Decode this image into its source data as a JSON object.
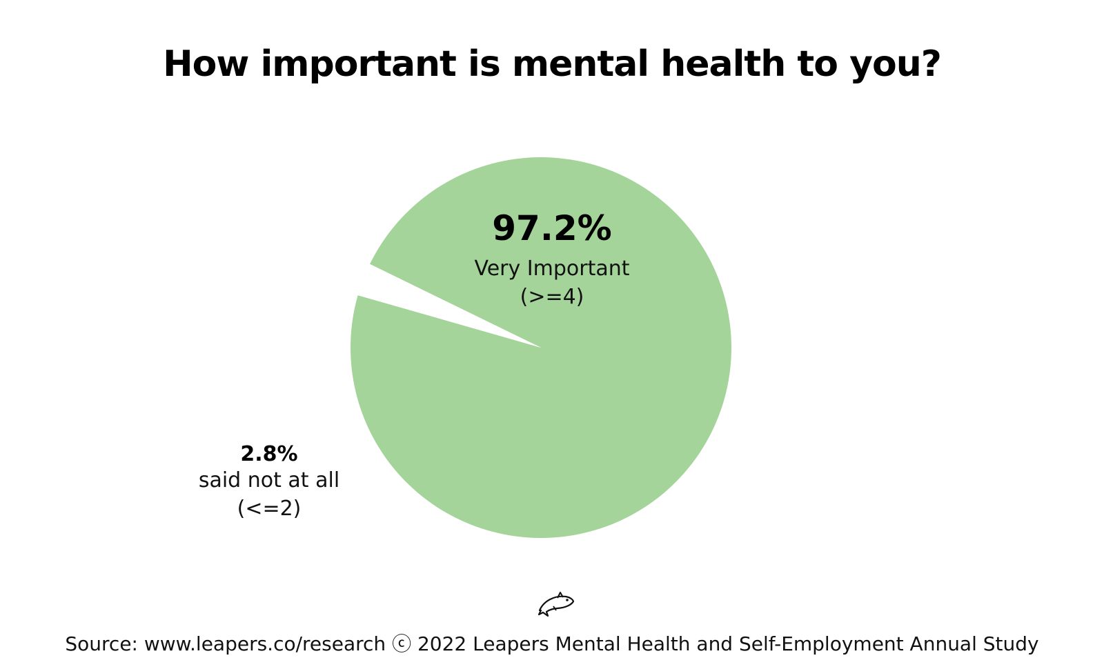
{
  "chart_data": {
    "type": "pie",
    "title": "How important is mental health to you?",
    "slices": [
      {
        "value": 97.2,
        "value_label": "97.2%",
        "label": "Very Important",
        "sublabel": "(>=4)",
        "color": "#a4d49a"
      },
      {
        "value": 2.8,
        "value_label": "2.8%",
        "label": "said not at all",
        "sublabel": "(<=2)",
        "color": "#ffffff"
      }
    ],
    "legend": "none"
  },
  "footer": {
    "logo_icon": "leaping-fish-icon",
    "source": "Source: www.leapers.co/research ⓒ 2022 Leapers Mental Health and Self-Employment Annual Study"
  }
}
